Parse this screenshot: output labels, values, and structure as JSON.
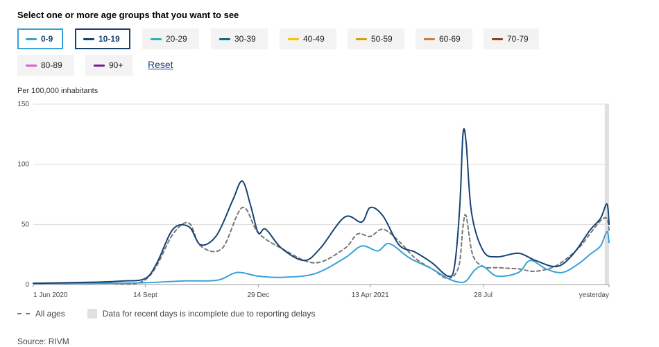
{
  "header": {
    "title": "Select one or more age groups that you want to see"
  },
  "age_groups": [
    {
      "label": "0-9",
      "color": "#39a0d8",
      "selected": true
    },
    {
      "label": "10-19",
      "color": "#154273",
      "selected": true
    },
    {
      "label": "20-29",
      "color": "#2bb5a8",
      "selected": false
    },
    {
      "label": "30-39",
      "color": "#00747a",
      "selected": false
    },
    {
      "label": "40-49",
      "color": "#f9c600",
      "selected": false
    },
    {
      "label": "50-59",
      "color": "#d4a10a",
      "selected": false
    },
    {
      "label": "60-69",
      "color": "#d9782d",
      "selected": false
    },
    {
      "label": "70-79",
      "color": "#8b4513",
      "selected": false
    },
    {
      "label": "80-89",
      "color": "#d562d5",
      "selected": false
    },
    {
      "label": "90+",
      "color": "#7b1e8c",
      "selected": false
    }
  ],
  "reset_label": "Reset",
  "unit_label": "Per 100,000 inhabitants",
  "legend": {
    "all_ages": "All ages",
    "incomplete": "Data for recent days is incomplete due to reporting delays"
  },
  "source": "Source: RIVM",
  "colors": {
    "all_ages": "#777777",
    "grid": "#dcdcdc",
    "incomplete_band": "#e0e0e0"
  },
  "chart_data": {
    "type": "line",
    "x_tick_labels": [
      "1 Jun 2020",
      "14 Sept",
      "29 Dec",
      "13 Apr 2021",
      "28 Jul",
      "yesterday"
    ],
    "y_ticks": [
      0,
      50,
      100,
      150
    ],
    "ylim": [
      0,
      150
    ],
    "grid": true,
    "incomplete_period": "last ~4 days",
    "series": [
      {
        "name": "0-9",
        "color": "#39a0d8",
        "x": [
          "2020-06-01",
          "2020-08-01",
          "2020-09-14",
          "2020-10-20",
          "2020-11-20",
          "2020-12-05",
          "2020-12-13",
          "2020-12-29",
          "2021-01-20",
          "2021-02-20",
          "2021-03-20",
          "2021-04-05",
          "2021-04-20",
          "2021-05-01",
          "2021-05-20",
          "2021-06-10",
          "2021-06-25",
          "2021-07-05",
          "2021-07-12",
          "2021-07-20",
          "2021-07-28",
          "2021-08-10",
          "2021-08-30",
          "2021-09-10",
          "2021-09-25",
          "2021-10-10",
          "2021-10-25",
          "2021-11-05",
          "2021-11-15",
          "2021-11-21",
          "2021-11-23"
        ],
        "values": [
          1,
          1,
          1.5,
          3,
          3.5,
          9,
          10,
          7,
          6,
          9,
          22,
          32,
          28,
          34,
          22,
          13,
          5,
          2,
          3,
          12,
          15,
          7,
          10,
          20,
          13,
          10,
          17,
          25,
          32,
          44,
          35
        ]
      },
      {
        "name": "10-19",
        "color": "#154273",
        "x": [
          "2020-06-01",
          "2020-08-01",
          "2020-08-25",
          "2020-09-14",
          "2020-09-25",
          "2020-10-10",
          "2020-10-25",
          "2020-11-05",
          "2020-11-20",
          "2020-12-05",
          "2020-12-14",
          "2020-12-22",
          "2020-12-29",
          "2021-01-05",
          "2021-01-20",
          "2021-02-10",
          "2021-02-25",
          "2021-03-20",
          "2021-04-05",
          "2021-04-13",
          "2021-04-25",
          "2021-05-10",
          "2021-05-25",
          "2021-06-10",
          "2021-06-25",
          "2021-07-01",
          "2021-07-06",
          "2021-07-09",
          "2021-07-12",
          "2021-07-17",
          "2021-07-28",
          "2021-08-10",
          "2021-08-30",
          "2021-09-15",
          "2021-10-05",
          "2021-10-20",
          "2021-11-05",
          "2021-11-15",
          "2021-11-21",
          "2021-11-23"
        ],
        "values": [
          1,
          2,
          3,
          5,
          18,
          46,
          48,
          33,
          41,
          70,
          86,
          65,
          43,
          46,
          30,
          20,
          30,
          56,
          52,
          64,
          57,
          33,
          27,
          18,
          7,
          15,
          65,
          125,
          118,
          60,
          28,
          23,
          26,
          20,
          15,
          25,
          45,
          55,
          67,
          50
        ]
      },
      {
        "name": "All ages",
        "color": "#777777",
        "dashed": true,
        "x": [
          "2020-06-01",
          "2020-08-01",
          "2020-09-14",
          "2020-10-10",
          "2020-10-25",
          "2020-11-05",
          "2020-11-25",
          "2020-12-14",
          "2020-12-29",
          "2021-01-20",
          "2021-02-20",
          "2021-03-20",
          "2021-04-01",
          "2021-04-13",
          "2021-04-25",
          "2021-05-10",
          "2021-05-25",
          "2021-06-10",
          "2021-06-25",
          "2021-07-05",
          "2021-07-09",
          "2021-07-12",
          "2021-07-18",
          "2021-07-28",
          "2021-08-10",
          "2021-08-30",
          "2021-09-15",
          "2021-10-05",
          "2021-10-25",
          "2021-11-05",
          "2021-11-15",
          "2021-11-21",
          "2021-11-23"
        ],
        "values": [
          1,
          1.5,
          4,
          42,
          51,
          32,
          30,
          64,
          43,
          30,
          18,
          30,
          42,
          40,
          46,
          36,
          22,
          13,
          5,
          15,
          48,
          57,
          25,
          15,
          14,
          13,
          11,
          16,
          30,
          42,
          53,
          55,
          45
        ]
      }
    ]
  }
}
